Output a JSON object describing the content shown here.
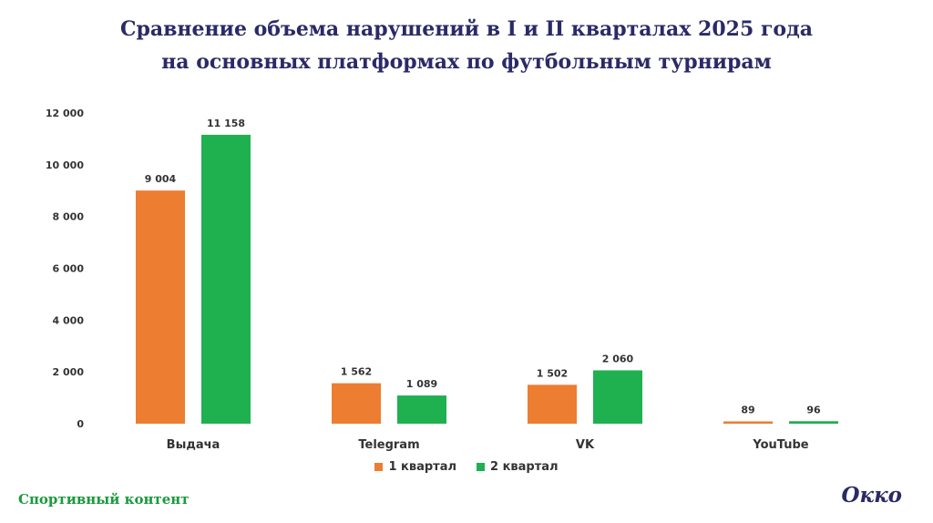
{
  "title": {
    "line1": "Сравнение объема нарушений в I и II кварталах 2025 года",
    "line2": "на основных платформах по футбольным турнирам"
  },
  "chart_data": {
    "type": "bar",
    "categories": [
      "Выдача",
      "Telegram",
      "VK",
      "YouTube"
    ],
    "series": [
      {
        "name": "1 квартал",
        "color": "#ed7d31",
        "values": [
          9004,
          1562,
          1502,
          89
        ],
        "labels": [
          "9 004",
          "1 562",
          "1 502",
          "89"
        ]
      },
      {
        "name": "2 квартал",
        "color": "#1fb050",
        "values": [
          11158,
          1089,
          2060,
          96
        ],
        "labels": [
          "11 158",
          "1 089",
          "2 060",
          "96"
        ]
      }
    ],
    "ylim": [
      0,
      12000
    ],
    "yticks": [
      0,
      2000,
      4000,
      6000,
      8000,
      10000,
      12000
    ],
    "ytick_labels": [
      "0",
      "2 000",
      "4 000",
      "6 000",
      "8 000",
      "10 000",
      "12 000"
    ],
    "grid": false,
    "legend_position": "bottom",
    "xlabel": "",
    "ylabel": ""
  },
  "footer": {
    "left": "Спортивный контент",
    "right": "Окко"
  }
}
